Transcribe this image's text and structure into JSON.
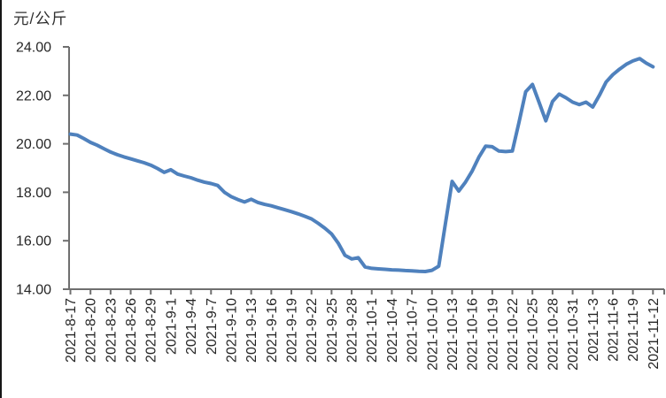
{
  "chart": {
    "unit_label": "元/公斤"
  },
  "chart_data": {
    "type": "line",
    "title": "",
    "xlabel": "",
    "ylabel": "元/公斤",
    "ylim": [
      14,
      24
    ],
    "grid": false,
    "legend_position": "none",
    "y_tick_values": [
      24,
      22,
      20,
      18,
      16,
      14
    ],
    "y_tick_labels": [
      "24.00",
      "22.00",
      "20.00",
      "18.00",
      "16.00",
      "14.00"
    ],
    "x_tick_labels": [
      "2021-8-17",
      "2021-8-20",
      "2021-8-23",
      "2021-8-26",
      "2021-8-29",
      "2021-9-1",
      "2021-9-4",
      "2021-9-7",
      "2021-9-10",
      "2021-9-13",
      "2021-9-16",
      "2021-9-19",
      "2021-9-22",
      "2021-9-25",
      "2021-9-28",
      "2021-10-1",
      "2021-10-4",
      "2021-10-7",
      "2021-10-10",
      "2021-10-13",
      "2021-10-16",
      "2021-10-19",
      "2021-10-22",
      "2021-10-25",
      "2021-10-28",
      "2021-10-31",
      "2021-11-3",
      "2021-11-6",
      "2021-11-9",
      "2021-11-12"
    ],
    "series": [
      {
        "color": "#4f81bd",
        "x": [
          "2021-8-17",
          "2021-8-18",
          "2021-8-19",
          "2021-8-20",
          "2021-8-21",
          "2021-8-22",
          "2021-8-23",
          "2021-8-24",
          "2021-8-25",
          "2021-8-26",
          "2021-8-27",
          "2021-8-28",
          "2021-8-29",
          "2021-8-30",
          "2021-8-31",
          "2021-9-1",
          "2021-9-2",
          "2021-9-3",
          "2021-9-4",
          "2021-9-5",
          "2021-9-6",
          "2021-9-7",
          "2021-9-8",
          "2021-9-9",
          "2021-9-10",
          "2021-9-11",
          "2021-9-12",
          "2021-9-13",
          "2021-9-14",
          "2021-9-15",
          "2021-9-16",
          "2021-9-17",
          "2021-9-18",
          "2021-9-19",
          "2021-9-20",
          "2021-9-21",
          "2021-9-22",
          "2021-9-23",
          "2021-9-24",
          "2021-9-25",
          "2021-9-26",
          "2021-9-27",
          "2021-9-28",
          "2021-9-29",
          "2021-9-30",
          "2021-10-1",
          "2021-10-2",
          "2021-10-3",
          "2021-10-4",
          "2021-10-5",
          "2021-10-6",
          "2021-10-7",
          "2021-10-8",
          "2021-10-9",
          "2021-10-10",
          "2021-10-11",
          "2021-10-12",
          "2021-10-13",
          "2021-10-14",
          "2021-10-15",
          "2021-10-16",
          "2021-10-17",
          "2021-10-18",
          "2021-10-19",
          "2021-10-20",
          "2021-10-21",
          "2021-10-22",
          "2021-10-23",
          "2021-10-24",
          "2021-10-25",
          "2021-10-26",
          "2021-10-27",
          "2021-10-28",
          "2021-10-29",
          "2021-10-30",
          "2021-10-31",
          "2021-11-1",
          "2021-11-2",
          "2021-11-3",
          "2021-11-4",
          "2021-11-5",
          "2021-11-6",
          "2021-11-7",
          "2021-11-8",
          "2021-11-9",
          "2021-11-10",
          "2021-11-11",
          "2021-11-12"
        ],
        "values": [
          20.4,
          20.36,
          20.22,
          20.06,
          19.94,
          19.8,
          19.66,
          19.55,
          19.46,
          19.38,
          19.3,
          19.22,
          19.12,
          18.98,
          18.82,
          18.93,
          18.75,
          18.67,
          18.6,
          18.5,
          18.42,
          18.36,
          18.28,
          18.0,
          17.82,
          17.7,
          17.6,
          17.71,
          17.58,
          17.5,
          17.44,
          17.36,
          17.28,
          17.2,
          17.11,
          17.01,
          16.9,
          16.72,
          16.52,
          16.28,
          15.9,
          15.4,
          15.25,
          15.3,
          14.92,
          14.86,
          14.84,
          14.82,
          14.8,
          14.79,
          14.77,
          14.76,
          14.74,
          14.73,
          14.78,
          14.95,
          16.7,
          18.45,
          18.05,
          18.42,
          18.88,
          19.45,
          19.9,
          19.88,
          19.7,
          19.68,
          19.7,
          20.9,
          22.15,
          22.45,
          21.7,
          20.95,
          21.75,
          22.05,
          21.9,
          21.72,
          21.62,
          21.72,
          21.52,
          22.0,
          22.55,
          22.85,
          23.08,
          23.28,
          23.42,
          23.52,
          23.33,
          23.18
        ]
      }
    ]
  },
  "colors": {
    "line": "#4f81bd",
    "axis": "#6f6f6f",
    "tick_text": "#262626",
    "background": "#ffffff",
    "left_border": "#161616"
  }
}
